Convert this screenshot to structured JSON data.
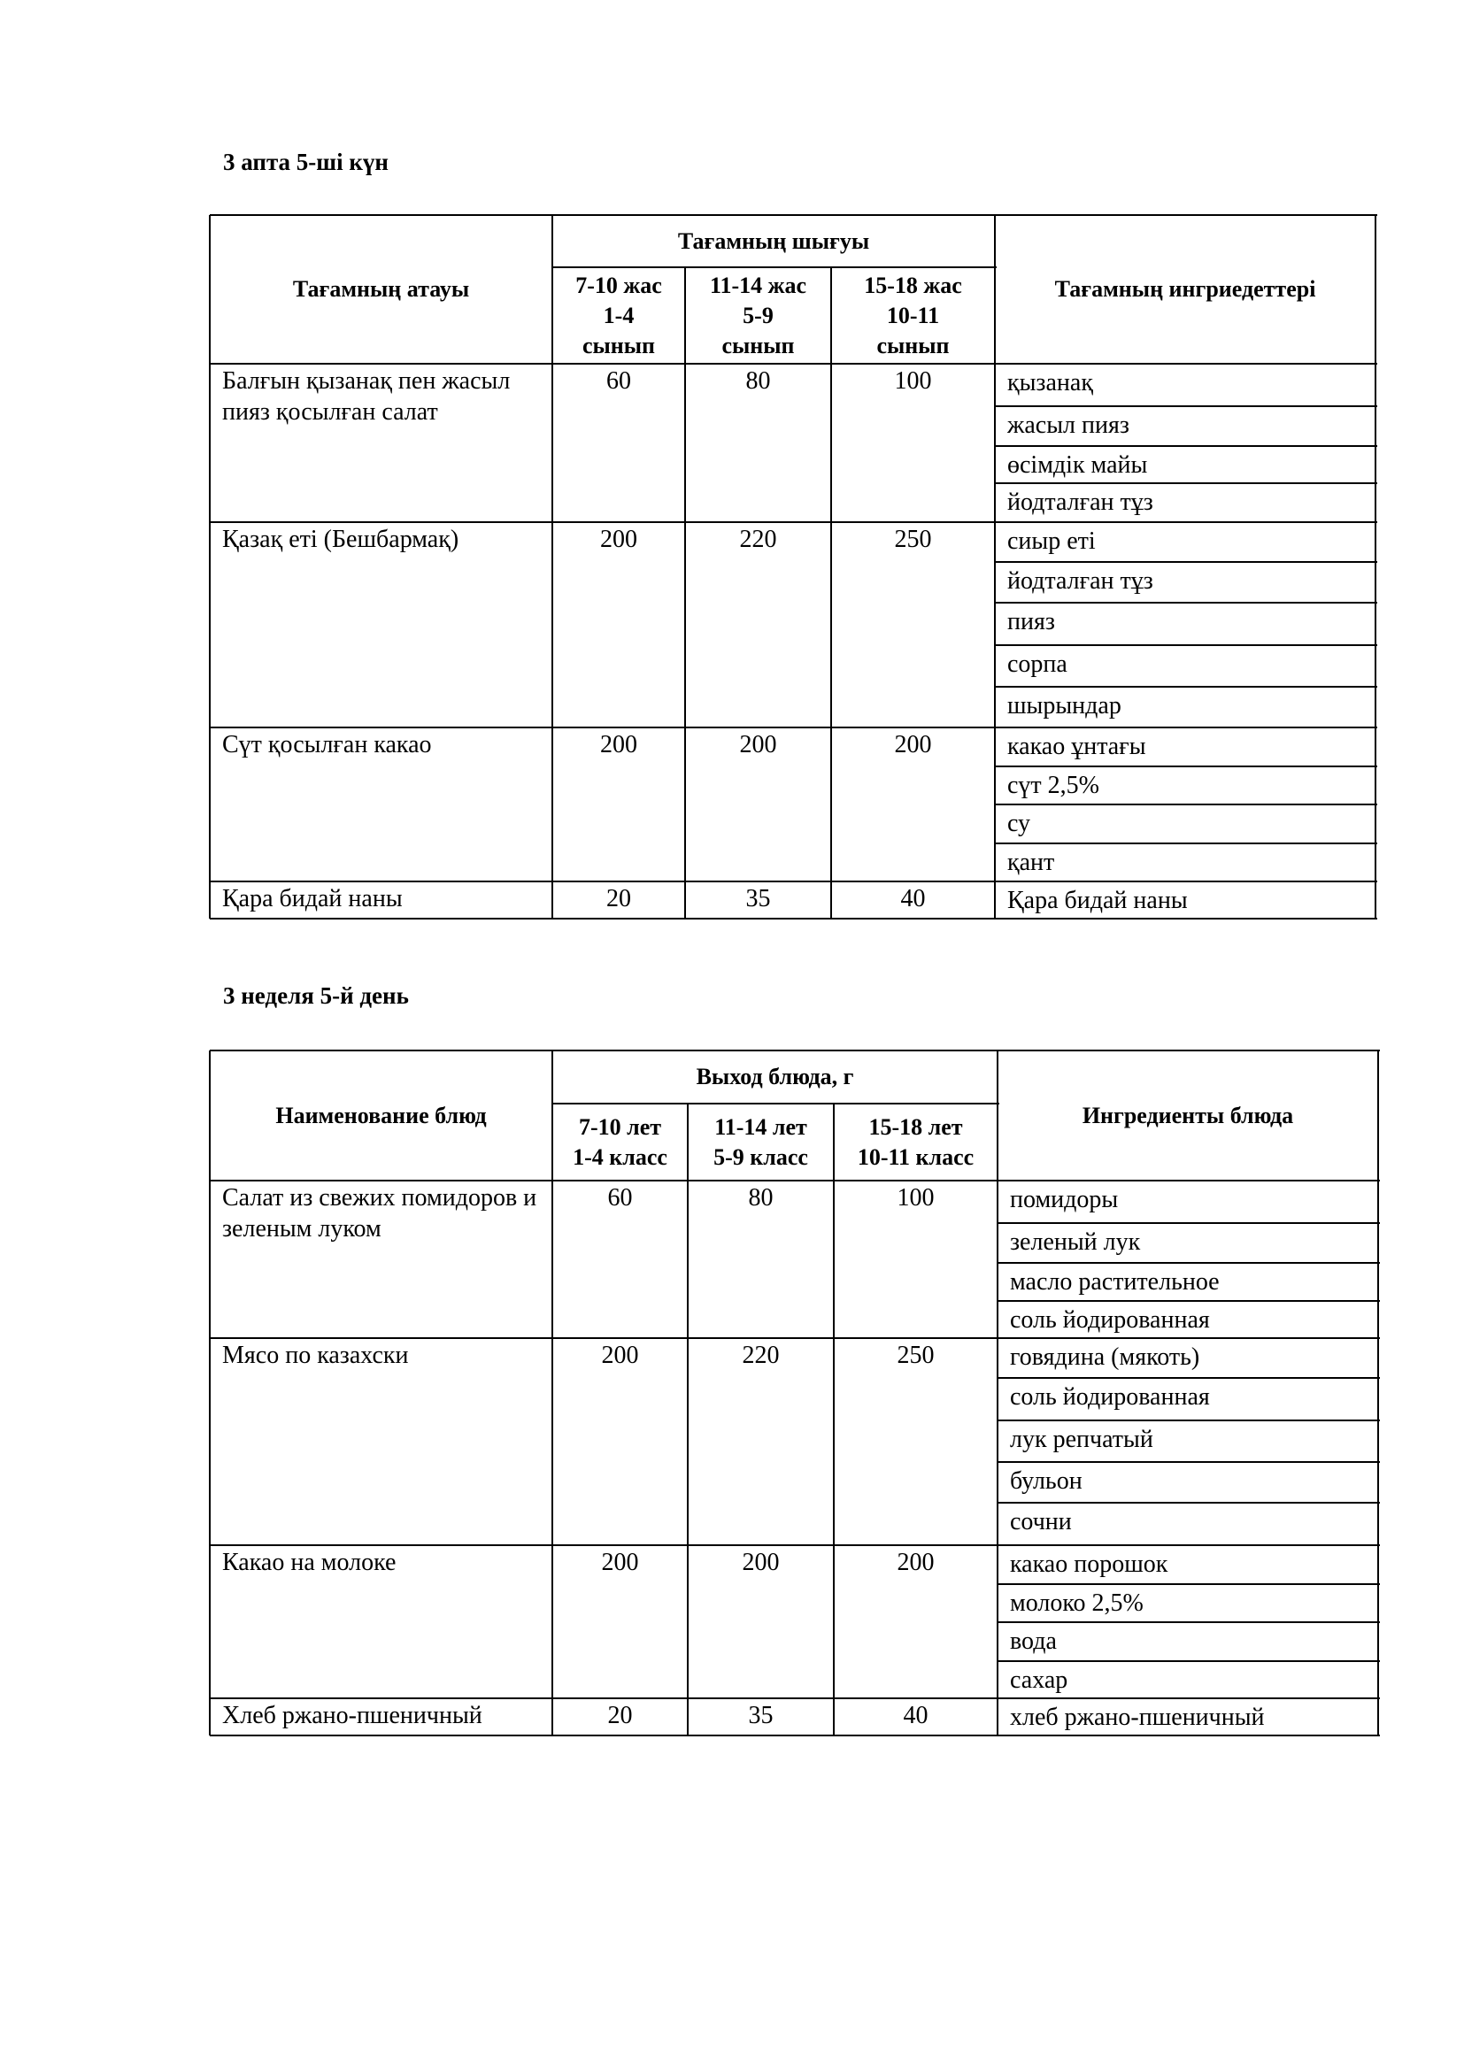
{
  "tables": [
    {
      "title": "3 апта 5-ші күн",
      "headers": {
        "name": "Тағамның атауы",
        "output": "Тағамның шығуы",
        "groups": [
          "7-10 жас\n1-4\nсынып",
          "11-14 жас\n5-9\nсынып",
          "15-18 жас\n10-11\nсынып"
        ],
        "ingredients": "Тағамның ингриедеттері"
      },
      "rows": [
        {
          "name": "Балғын қызанақ пен жасыл пияз қосылған салат",
          "values": [
            "60",
            "80",
            "100"
          ],
          "ingredients": [
            "қызанақ",
            "жасыл пияз",
            "өсімдік майы",
            "йодталған тұз"
          ]
        },
        {
          "name": "Қазақ еті (Бешбармақ)",
          "values": [
            "200",
            "220",
            "250"
          ],
          "ingredients": [
            "сиыр еті",
            "йодталған тұз",
            "пияз",
            "сорпа",
            "шырындар"
          ]
        },
        {
          "name": "Сүт қосылған какао",
          "values": [
            "200",
            "200",
            "200"
          ],
          "ingredients": [
            "какао ұнтағы",
            "сүт 2,5%",
            "су",
            "қант"
          ]
        },
        {
          "name": "Қара бидай наны",
          "values": [
            "20",
            "35",
            "40"
          ],
          "ingredients": [
            "Қара бидай наны"
          ]
        }
      ]
    },
    {
      "title": "3 неделя 5-й день",
      "headers": {
        "name": "Наименование блюд",
        "output": "Выход блюда, г",
        "groups": [
          "7-10 лет\n1-4 класс",
          "11-14 лет\n5-9 класс",
          "15-18 лет\n10-11 класс"
        ],
        "ingredients": "Ингредиенты блюда"
      },
      "rows": [
        {
          "name": "Салат из свежих помидоров и зеленым луком",
          "values": [
            "60",
            "80",
            "100"
          ],
          "ingredients": [
            "помидоры",
            "зеленый лук",
            "масло растительное",
            "соль йодированная"
          ]
        },
        {
          "name": "Мясо по казахски",
          "values": [
            "200",
            "220",
            "250"
          ],
          "ingredients": [
            "говядина (мякоть)",
            "соль йодированная",
            "лук репчатый",
            "бульон",
            "сочни"
          ]
        },
        {
          "name": "Какао на молоке",
          "values": [
            "200",
            "200",
            "200"
          ],
          "ingredients": [
            "какао порошок",
            "молоко 2,5%",
            "вода",
            "сахар"
          ]
        },
        {
          "name": "Хлеб ржано-пшеничный",
          "values": [
            "20",
            "35",
            "40"
          ],
          "ingredients": [
            "хлеб ржано-пшеничный"
          ]
        }
      ]
    }
  ]
}
